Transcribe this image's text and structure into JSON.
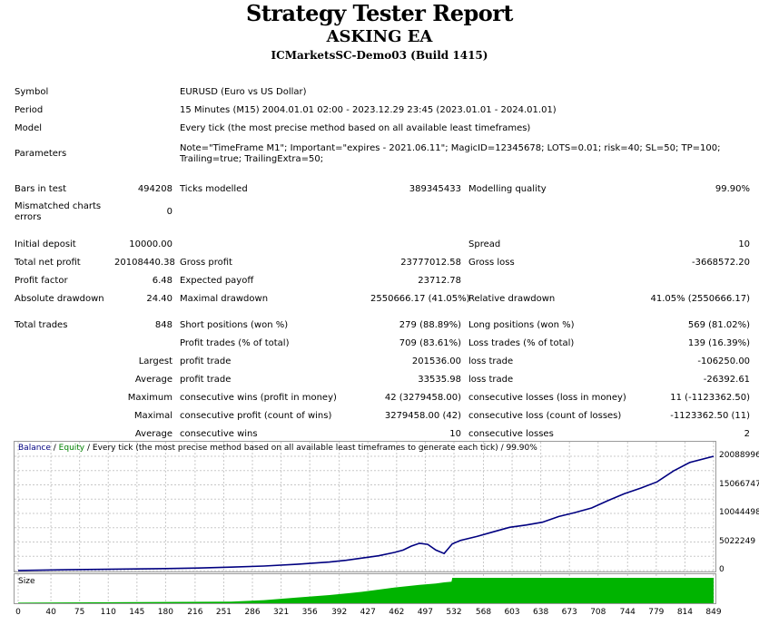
{
  "header": {
    "title": "Strategy Tester Report",
    "subtitle": "ASKING EA",
    "server": "ICMarketsSC-Demo03 (Build 1415)"
  },
  "settings": {
    "symbol_label": "Symbol",
    "symbol": "EURUSD (Euro vs US Dollar)",
    "period_label": "Period",
    "period": "15 Minutes (M15) 2004.01.01 02:00 - 2023.12.29 23:45 (2023.01.01 - 2024.01.01)",
    "model_label": "Model",
    "model": "Every tick (the most precise method based on all available least timeframes)",
    "parameters_label": "Parameters",
    "parameters_line1": "Note=\"TimeFrame M1\"; Important=\"expires - 2021.06.11\"; MagicID=12345678; LOTS=0.01; risk=40; SL=50; TP=100;",
    "parameters_line2": "Trailing=true; TrailingExtra=50;"
  },
  "stats": {
    "bars_label": "Bars in test",
    "bars": "494208",
    "ticks_label": "Ticks modelled",
    "ticks": "389345433",
    "quality_label": "Modelling quality",
    "quality": "99.90%",
    "mismatch_label": "Mismatched charts errors",
    "mismatch": "0",
    "deposit_label": "Initial deposit",
    "deposit": "10000.00",
    "spread_label": "Spread",
    "spread": "10",
    "net_label": "Total net profit",
    "net": "20108440.38",
    "gross_profit_label": "Gross profit",
    "gross_profit": "23777012.58",
    "gross_loss_label": "Gross loss",
    "gross_loss": "-3668572.20",
    "pf_label": "Profit factor",
    "pf": "6.48",
    "payoff_label": "Expected payoff",
    "payoff": "23712.78",
    "abs_dd_label": "Absolute drawdown",
    "abs_dd": "24.40",
    "max_dd_label": "Maximal drawdown",
    "max_dd": "2550666.17 (41.05%)",
    "rel_dd_label": "Relative drawdown",
    "rel_dd": "41.05% (2550666.17)",
    "trades_label": "Total trades",
    "trades": "848",
    "short_label": "Short positions (won %)",
    "short": "279 (88.89%)",
    "long_label": "Long positions (won %)",
    "long": "569 (81.02%)",
    "profit_trades_label": "Profit trades (% of total)",
    "profit_trades": "709 (83.61%)",
    "loss_trades_label": "Loss trades (% of total)",
    "loss_trades": "139 (16.39%)",
    "largest_label": "Largest",
    "largest_profit_label": "profit trade",
    "largest_profit": "201536.00",
    "largest_loss_label": "loss trade",
    "largest_loss": "-106250.00",
    "average_label": "Average",
    "average_profit_label": "profit trade",
    "average_profit": "33535.98",
    "average_loss_label": "loss trade",
    "average_loss": "-26392.61",
    "maximum_label": "Maximum",
    "max_wins_label": "consecutive wins (profit in money)",
    "max_wins": "42 (3279458.00)",
    "max_losses_label": "consecutive losses (loss in money)",
    "max_losses": "11 (-1123362.50)",
    "maximal_label": "Maximal",
    "maximal_profit_label": "consecutive profit (count of wins)",
    "maximal_profit": "3279458.00 (42)",
    "maximal_loss_label": "consecutive loss (count of losses)",
    "maximal_loss": "-1123362.50 (11)",
    "avg_consec_label": "Average",
    "avg_wins_label": "consecutive wins",
    "avg_wins": "10",
    "avg_losses_label": "consecutive losses",
    "avg_losses": "2"
  },
  "chart_data": {
    "type": "line",
    "legend": {
      "balance": "Balance",
      "sep1": " / ",
      "equity": "Equity",
      "rest": " / Every tick (the most precise method based on all available least timeframes to generate each tick) / 99.90%"
    },
    "colors": {
      "balance": "#000080",
      "equity": "#008000",
      "size": "#00b400",
      "grid": "#c8c8c8"
    },
    "x_ticks": [
      "0",
      "40",
      "75",
      "110",
      "145",
      "180",
      "216",
      "251",
      "286",
      "321",
      "356",
      "392",
      "427",
      "462",
      "497",
      "532",
      "568",
      "603",
      "638",
      "673",
      "708",
      "744",
      "779",
      "814",
      "849"
    ],
    "y_ticks": [
      "20088996",
      "15066747",
      "10044498",
      "5022249",
      "0"
    ],
    "xlim": [
      0,
      849
    ],
    "ylim": [
      0,
      20088996
    ],
    "grid": true,
    "series": [
      {
        "name": "Balance",
        "x": [
          0,
          60,
          120,
          180,
          220,
          260,
          300,
          340,
          380,
          400,
          420,
          440,
          460,
          470,
          480,
          490,
          500,
          510,
          520,
          530,
          540,
          560,
          580,
          600,
          620,
          640,
          660,
          680,
          700,
          720,
          740,
          760,
          780,
          800,
          820,
          849
        ],
        "values": [
          10000,
          150000,
          250000,
          350000,
          450000,
          600000,
          800000,
          1100000,
          1500000,
          1800000,
          2200000,
          2600000,
          3200000,
          3600000,
          4300000,
          4800000,
          4600000,
          3600000,
          3000000,
          4700000,
          5300000,
          6000000,
          6800000,
          7600000,
          8000000,
          8500000,
          9500000,
          10200000,
          11000000,
          12300000,
          13500000,
          14500000,
          15600000,
          17500000,
          19000000,
          20088996
        ]
      }
    ],
    "size": {
      "label": "Size",
      "x": [
        0,
        260,
        300,
        340,
        380,
        420,
        460,
        490,
        500,
        510,
        520,
        529,
        530,
        849
      ],
      "values": [
        0.02,
        0.06,
        0.12,
        0.22,
        0.32,
        0.45,
        0.62,
        0.72,
        0.75,
        0.78,
        0.82,
        0.85,
        1.0,
        1.0
      ]
    }
  }
}
